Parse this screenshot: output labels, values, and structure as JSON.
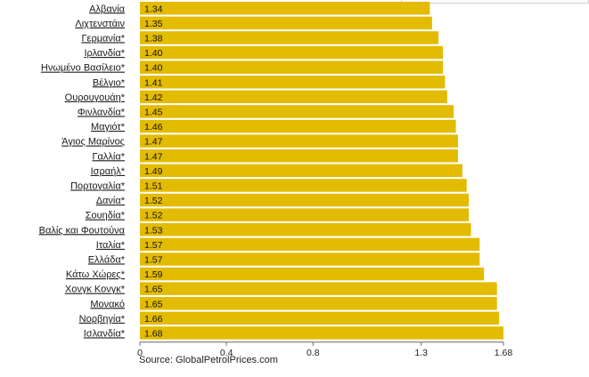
{
  "chart_data": {
    "type": "bar",
    "orientation": "horizontal",
    "categories": [
      "Αλβανία",
      "Λιχτενστάιν",
      "Γερμανία*",
      "Ιρλανδία*",
      "Ηνωμένο Βασίλειο*",
      "Βέλγιο*",
      "Ουρουγουάη*",
      "Φινλανδία*",
      "Μαγιότ*",
      "Άγιος Μαρίνος",
      "Γαλλία*",
      "Ισραήλ*",
      "Πορτογαλία*",
      "Δανία*",
      "Σουηδία*",
      "Βαλίς και Φουτούνα",
      "Ιταλία*",
      "Ελλάδα*",
      "Κάτω Χώρες*",
      "Χονγκ Κονγκ*",
      "Μονακό",
      "Νορβηγία*",
      "Ισλανδία*"
    ],
    "values": [
      1.34,
      1.35,
      1.38,
      1.4,
      1.4,
      1.41,
      1.42,
      1.45,
      1.46,
      1.47,
      1.47,
      1.49,
      1.51,
      1.52,
      1.52,
      1.53,
      1.57,
      1.57,
      1.59,
      1.65,
      1.65,
      1.66,
      1.68
    ],
    "value_labels": [
      "1.34",
      "1.35",
      "1.38",
      "1.40",
      "1.40",
      "1.41",
      "1.42",
      "1.45",
      "1.46",
      "1.47",
      "1.47",
      "1.49",
      "1.51",
      "1.52",
      "1.52",
      "1.53",
      "1.57",
      "1.57",
      "1.59",
      "1.65",
      "1.65",
      "1.66",
      "1.68"
    ],
    "xticks": [
      0,
      0.4,
      0.8,
      1.3,
      1.68
    ],
    "xtick_labels": [
      "0",
      "0.4",
      "0.8",
      "1.3",
      "1.68"
    ],
    "xlim": [
      0,
      1.68
    ],
    "grid": false,
    "bar_color": "#e3bb00"
  },
  "source": "Source: GlobalPetrolPrices.com"
}
